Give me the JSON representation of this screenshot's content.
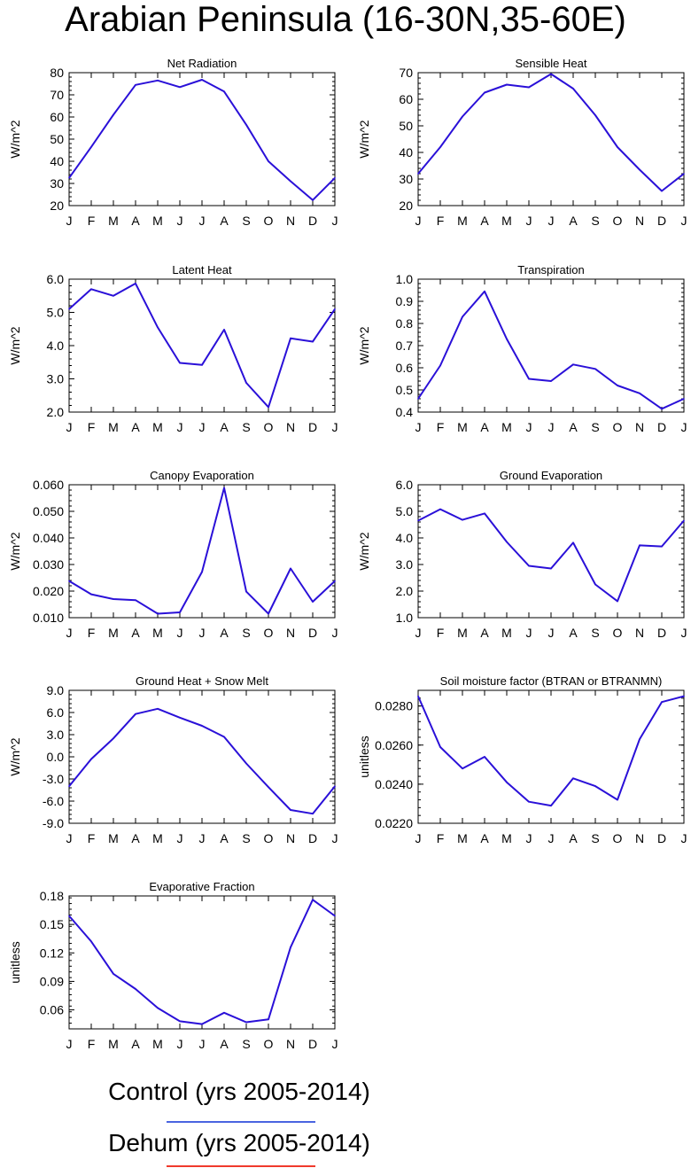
{
  "title": "Arabian Peninsula (16-30N,35-60E)",
  "colors": {
    "series_line": "#2a10d8",
    "legend_control": "#4a64e0",
    "legend_dehum": "#f03a2c",
    "axis": "#000000"
  },
  "legend": [
    {
      "label": "Control (yrs 2005-2014)",
      "color": "#4a64e0"
    },
    {
      "label": "Dehum (yrs 2005-2014)",
      "color": "#f03a2c"
    }
  ],
  "chart_data": [
    {
      "type": "line",
      "title": "Net Radiation",
      "ylabel": "W/m^2",
      "categories": [
        "J",
        "F",
        "M",
        "A",
        "M",
        "J",
        "J",
        "A",
        "S",
        "O",
        "N",
        "D",
        "J"
      ],
      "ylim": [
        20,
        80
      ],
      "yticks": [
        20,
        30,
        40,
        50,
        60,
        70,
        80
      ],
      "yticklabels": [
        "20",
        "30",
        "40",
        "50",
        "60",
        "70",
        "80"
      ],
      "values": [
        32.5,
        46.5,
        61,
        74.5,
        76.5,
        73.5,
        76.8,
        71.5,
        56.5,
        40,
        31,
        22.5,
        32.5
      ]
    },
    {
      "type": "line",
      "title": "Sensible Heat",
      "ylabel": "W/m^2",
      "categories": [
        "J",
        "F",
        "M",
        "A",
        "M",
        "J",
        "J",
        "A",
        "S",
        "O",
        "N",
        "D",
        "J"
      ],
      "ylim": [
        20,
        70
      ],
      "yticks": [
        20,
        30,
        40,
        50,
        60,
        70
      ],
      "yticklabels": [
        "20",
        "30",
        "40",
        "50",
        "60",
        "70"
      ],
      "values": [
        32,
        42,
        53.5,
        62.5,
        65.5,
        64.5,
        69.5,
        64,
        54,
        42,
        33.5,
        25.5,
        32
      ]
    },
    {
      "type": "line",
      "title": "Latent Heat",
      "ylabel": "W/m^2",
      "categories": [
        "J",
        "F",
        "M",
        "A",
        "M",
        "J",
        "J",
        "A",
        "S",
        "O",
        "N",
        "D",
        "J"
      ],
      "ylim": [
        2.0,
        6.0
      ],
      "yticks": [
        2,
        3,
        4,
        5,
        6
      ],
      "yticklabels": [
        "2.0",
        "3.0",
        "4.0",
        "5.0",
        "6.0"
      ],
      "values": [
        5.1,
        5.7,
        5.5,
        5.87,
        4.55,
        3.48,
        3.42,
        4.48,
        2.88,
        2.15,
        4.22,
        4.12,
        5.1
      ]
    },
    {
      "type": "line",
      "title": "Transpiration",
      "ylabel": "W/m^2",
      "categories": [
        "J",
        "F",
        "M",
        "A",
        "M",
        "J",
        "J",
        "A",
        "S",
        "O",
        "N",
        "D",
        "J"
      ],
      "ylim": [
        0.4,
        1.0
      ],
      "yticks": [
        0.4,
        0.5,
        0.6,
        0.7,
        0.8,
        0.9,
        1.0
      ],
      "yticklabels": [
        "0.4",
        "0.5",
        "0.6",
        "0.7",
        "0.8",
        "0.9",
        "1.0"
      ],
      "values": [
        0.46,
        0.61,
        0.83,
        0.945,
        0.73,
        0.55,
        0.54,
        0.615,
        0.595,
        0.52,
        0.485,
        0.415,
        0.46
      ]
    },
    {
      "type": "line",
      "title": "Canopy Evaporation",
      "ylabel": "W/m^2",
      "categories": [
        "J",
        "F",
        "M",
        "A",
        "M",
        "J",
        "J",
        "A",
        "S",
        "O",
        "N",
        "D",
        "J"
      ],
      "ylim": [
        0.01,
        0.06
      ],
      "yticks": [
        0.01,
        0.02,
        0.03,
        0.04,
        0.05,
        0.06
      ],
      "yticklabels": [
        "0.010",
        "0.020",
        "0.030",
        "0.040",
        "0.050",
        "0.060"
      ],
      "values": [
        0.0238,
        0.0188,
        0.017,
        0.0166,
        0.0115,
        0.012,
        0.0272,
        0.0588,
        0.0198,
        0.0115,
        0.0285,
        0.016,
        0.0238
      ]
    },
    {
      "type": "line",
      "title": "Ground Evaporation",
      "ylabel": "W/m^2",
      "categories": [
        "J",
        "F",
        "M",
        "A",
        "M",
        "J",
        "J",
        "A",
        "S",
        "O",
        "N",
        "D",
        "J"
      ],
      "ylim": [
        1.0,
        6.0
      ],
      "yticks": [
        1,
        2,
        3,
        4,
        5,
        6
      ],
      "yticklabels": [
        "1.0",
        "2.0",
        "3.0",
        "4.0",
        "5.0",
        "6.0"
      ],
      "values": [
        4.65,
        5.08,
        4.68,
        4.92,
        3.85,
        2.95,
        2.85,
        3.82,
        2.25,
        1.62,
        3.72,
        3.68,
        4.65
      ]
    },
    {
      "type": "line",
      "title": "Ground Heat + Snow Melt",
      "ylabel": "W/m^2",
      "categories": [
        "J",
        "F",
        "M",
        "A",
        "M",
        "J",
        "J",
        "A",
        "S",
        "O",
        "N",
        "D",
        "J"
      ],
      "ylim": [
        -9.0,
        9.0
      ],
      "yticks": [
        -9,
        -6,
        -3,
        0,
        3,
        6,
        9
      ],
      "yticklabels": [
        "-9.0",
        "-6.0",
        "-3.0",
        "0.0",
        "3.0",
        "6.0",
        "9.0"
      ],
      "values": [
        -4.0,
        -0.3,
        2.5,
        5.8,
        6.5,
        5.3,
        4.2,
        2.7,
        -0.9,
        -4.1,
        -7.2,
        -7.7,
        -4.0
      ]
    },
    {
      "type": "line",
      "title": "Soil moisture factor (BTRAN or BTRANMN)",
      "ylabel": "unitless",
      "categories": [
        "J",
        "F",
        "M",
        "A",
        "M",
        "J",
        "J",
        "A",
        "S",
        "O",
        "N",
        "D",
        "J"
      ],
      "ylim": [
        0.022,
        0.0288
      ],
      "yticks": [
        0.022,
        0.024,
        0.026,
        0.028
      ],
      "yticklabels": [
        "0.0220",
        "0.0240",
        "0.0260",
        "0.0280"
      ],
      "values": [
        0.0285,
        0.0259,
        0.0248,
        0.0254,
        0.0241,
        0.0231,
        0.0229,
        0.0243,
        0.0239,
        0.0232,
        0.0263,
        0.0282,
        0.0285
      ]
    },
    {
      "type": "line",
      "title": "Evaporative Fraction",
      "ylabel": "unitless",
      "categories": [
        "J",
        "F",
        "M",
        "A",
        "M",
        "J",
        "J",
        "A",
        "S",
        "O",
        "N",
        "D",
        "J"
      ],
      "ylim": [
        0.04,
        0.18
      ],
      "yticks": [
        0.06,
        0.09,
        0.12,
        0.15,
        0.18
      ],
      "yticklabels": [
        "0.06",
        "0.09",
        "0.12",
        "0.15",
        "0.18"
      ],
      "values": [
        0.159,
        0.132,
        0.098,
        0.082,
        0.062,
        0.048,
        0.045,
        0.057,
        0.047,
        0.05,
        0.126,
        0.176,
        0.159
      ]
    }
  ]
}
